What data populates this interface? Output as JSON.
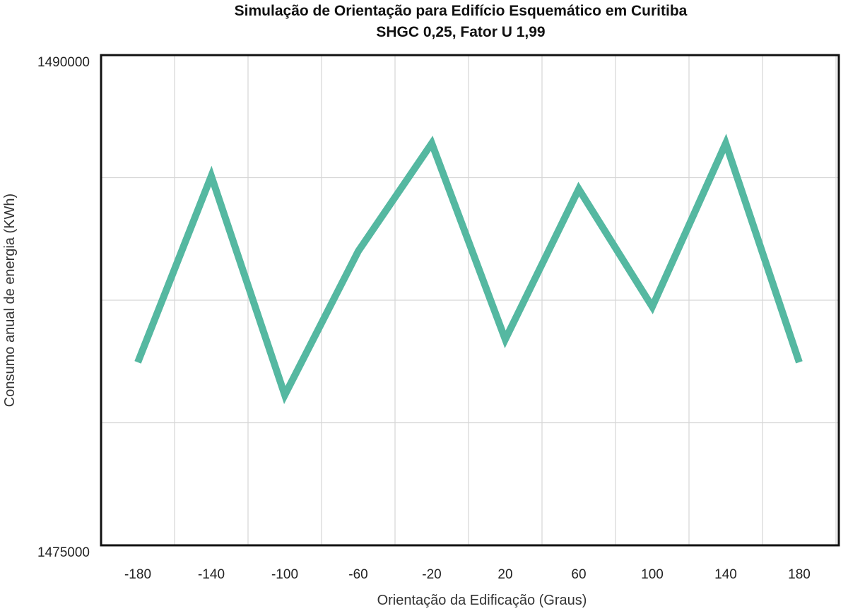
{
  "chart_data": {
    "type": "line",
    "title": "Simulação de Orientação para Edifício Esquemático em Curitiba",
    "subtitle": "SHGC 0,25, Fator U 1,99",
    "xlabel": "Orientação da Edificação (Graus)",
    "ylabel": "Consumo anual de energia (KWh)",
    "ylim": [
      1475000,
      1490000
    ],
    "y_tick_labels": [
      "1490000",
      "1475000"
    ],
    "y_gridlines": [
      1475000,
      1478750,
      1482500,
      1486250,
      1490000
    ],
    "x_categories": [
      "-180",
      "-140",
      "-100",
      "-60",
      "-20",
      "20",
      "60",
      "100",
      "140",
      "180"
    ],
    "grid": true,
    "legend": "none",
    "series": [
      {
        "color": "#55b8a1",
        "x": [
          -180,
          -140,
          -100,
          -60,
          -20,
          20,
          60,
          100,
          140,
          180
        ],
        "values": [
          1480600,
          1486300,
          1479600,
          1484000,
          1487300,
          1481300,
          1485900,
          1482300,
          1487300,
          1480600
        ]
      }
    ]
  }
}
